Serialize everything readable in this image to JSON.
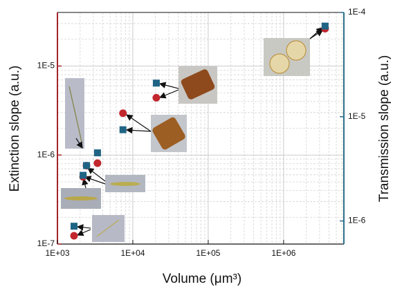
{
  "chart_data": {
    "type": "scatter",
    "x_label": "Volume (μm³)",
    "y_label": "Extinction slope (a.u.)",
    "y2_label": "Transmission slope (a.u.)",
    "log_x": true,
    "log_y": true,
    "log_y2": true,
    "grid": true,
    "xlim": [
      1000,
      6300000
    ],
    "xticks": [
      {
        "value": 1000,
        "label": "1E+03"
      },
      {
        "value": 10000,
        "label": "1E+04"
      },
      {
        "value": 100000,
        "label": "1E+05"
      },
      {
        "value": 1000000,
        "label": "1E+06"
      }
    ],
    "ylim": [
      1e-07,
      4e-05
    ],
    "yticks": [
      {
        "value": 1e-07,
        "label": "1E-7"
      },
      {
        "value": 1e-06,
        "label": "1E-6"
      },
      {
        "value": 1e-05,
        "label": "1E-5"
      }
    ],
    "y_color": "#a3242a",
    "y2lim": [
      6e-07,
      0.0001
    ],
    "y2ticks": [
      {
        "value": 1e-06,
        "label": "1E-6"
      },
      {
        "value": 1e-05,
        "label": "1E-5"
      },
      {
        "value": 0.0001,
        "label": "1E-4"
      }
    ],
    "y2_color": "#2c6f8c",
    "x": [
      1660,
      2190,
      2430,
      3400,
      7400,
      20500,
      3550000
    ],
    "series": [
      {
        "color": "#c1272d",
        "marker": "circle",
        "values": [
          1.24e-07,
          5.7e-07,
          7.6e-07,
          8.1e-07,
          2.95e-06,
          4.4e-06,
          2.63e-05
        ]
      },
      {
        "color": "#1f6485",
        "marker": "square",
        "axis": "y2",
        "values": [
          8.9e-07,
          2.74e-06,
          3.4e-06,
          4.5e-06,
          7.5e-06,
          2.1e-05,
          7.4e-05
        ]
      }
    ]
  }
}
